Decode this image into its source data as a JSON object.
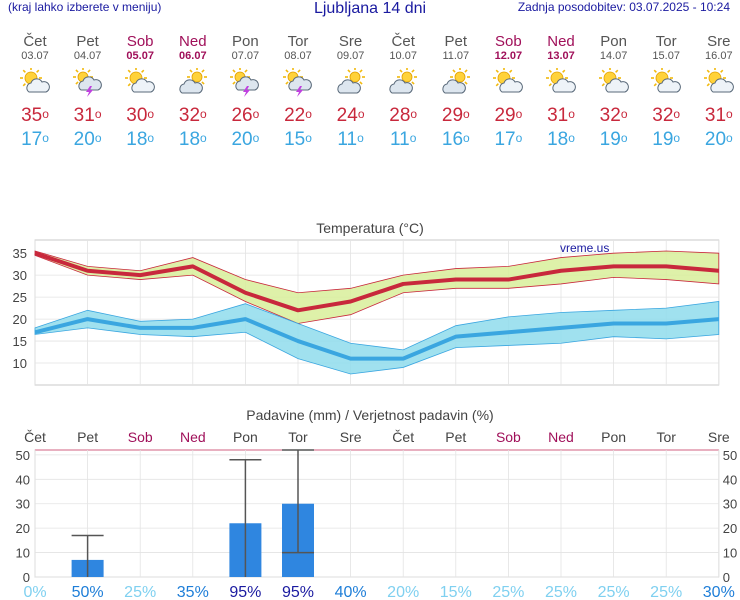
{
  "header": {
    "left_note": "(kraj lahko izberete v meniju)",
    "title": "Ljubljana 14 dni",
    "updated": "Zadnja posodobitev: 03.07.2025 - 10:24"
  },
  "forecast": [
    {
      "day": "Čet",
      "date": "03.07",
      "weekend": false,
      "icon": "sun-cloud-icon",
      "tmax": "35",
      "tmin": "17"
    },
    {
      "day": "Pet",
      "date": "04.07",
      "weekend": false,
      "icon": "thunderstorm-icon",
      "tmax": "31",
      "tmin": "20"
    },
    {
      "day": "Sob",
      "date": "05.07",
      "weekend": true,
      "icon": "sun-cloud-icon",
      "tmax": "30",
      "tmin": "18"
    },
    {
      "day": "Ned",
      "date": "06.07",
      "weekend": true,
      "icon": "cloud-sun-icon",
      "tmax": "32",
      "tmin": "18"
    },
    {
      "day": "Pon",
      "date": "07.07",
      "weekend": false,
      "icon": "thunderstorm-icon",
      "tmax": "26",
      "tmin": "20"
    },
    {
      "day": "Tor",
      "date": "08.07",
      "weekend": false,
      "icon": "thunderstorm-icon",
      "tmax": "22",
      "tmin": "15"
    },
    {
      "day": "Sre",
      "date": "09.07",
      "weekend": false,
      "icon": "cloud-sun-icon",
      "tmax": "24",
      "tmin": "11"
    },
    {
      "day": "Čet",
      "date": "10.07",
      "weekend": false,
      "icon": "cloud-sun-icon",
      "tmax": "28",
      "tmin": "11"
    },
    {
      "day": "Pet",
      "date": "11.07",
      "weekend": false,
      "icon": "cloud-sun-icon",
      "tmax": "29",
      "tmin": "16"
    },
    {
      "day": "Sob",
      "date": "12.07",
      "weekend": true,
      "icon": "sun-cloud-icon",
      "tmax": "29",
      "tmin": "17"
    },
    {
      "day": "Ned",
      "date": "13.07",
      "weekend": true,
      "icon": "sun-cloud-icon",
      "tmax": "31",
      "tmin": "18"
    },
    {
      "day": "Pon",
      "date": "14.07",
      "weekend": false,
      "icon": "sun-cloud-icon",
      "tmax": "32",
      "tmin": "19"
    },
    {
      "day": "Tor",
      "date": "15.07",
      "weekend": false,
      "icon": "sun-cloud-icon",
      "tmax": "32",
      "tmin": "19"
    },
    {
      "day": "Sre",
      "date": "16.07",
      "weekend": false,
      "icon": "sun-cloud-icon",
      "tmax": "31",
      "tmin": "20"
    }
  ],
  "colors": {
    "max": "#c8283c",
    "min": "#3aa6e0",
    "bar": "#2f86e0",
    "weekend": "#a0105a"
  },
  "chart_data": [
    {
      "type": "line",
      "title": "Temperatura (°C)",
      "watermark": "vreme.us",
      "categories": [
        "03.07",
        "04.07",
        "05.07",
        "06.07",
        "07.07",
        "08.07",
        "09.07",
        "10.07",
        "11.07",
        "12.07",
        "13.07",
        "14.07",
        "15.07",
        "16.07"
      ],
      "series": [
        {
          "values": [
            35,
            31,
            30,
            32,
            26,
            22,
            24,
            28,
            29,
            29,
            31,
            32,
            32,
            31
          ],
          "band_low": [
            34.5,
            30,
            29,
            30,
            24,
            19,
            21,
            26,
            27,
            27,
            28,
            29.5,
            29,
            28
          ],
          "band_high": [
            35.5,
            32,
            31,
            34,
            29,
            26,
            27,
            30,
            31.5,
            32,
            34,
            35,
            35.5,
            35
          ]
        },
        {
          "values": [
            17,
            20,
            18,
            18,
            20,
            15,
            11,
            11,
            16,
            17,
            18,
            19,
            19,
            20
          ],
          "band_low": [
            16.5,
            18,
            16.5,
            16,
            17,
            11,
            7.5,
            9,
            13.5,
            14,
            14.5,
            16,
            15.5,
            16.5
          ],
          "band_high": [
            18,
            22,
            19.5,
            20,
            23.5,
            19,
            14.5,
            13,
            18.5,
            20.5,
            21.5,
            22,
            22.5,
            24
          ]
        }
      ],
      "ylim": [
        5,
        38
      ],
      "yticks": [
        10,
        15,
        20,
        25,
        30,
        35
      ]
    },
    {
      "type": "bar",
      "title": "Padavine (mm) / Verjetnost padavin (%)",
      "categories": [
        "Čet",
        "Pet",
        "Sob",
        "Ned",
        "Pon",
        "Tor",
        "Sre",
        "Čet",
        "Pet",
        "Sob",
        "Ned",
        "Pon",
        "Tor",
        "Sre"
      ],
      "weekend": [
        false,
        false,
        true,
        true,
        false,
        false,
        false,
        false,
        false,
        true,
        true,
        false,
        false,
        false
      ],
      "values": [
        0,
        7,
        0,
        0,
        22,
        30,
        0,
        0,
        0,
        0,
        0,
        0,
        0,
        0
      ],
      "err_low": [
        null,
        0,
        null,
        null,
        0,
        10,
        null,
        null,
        null,
        null,
        null,
        null,
        null,
        null
      ],
      "err_high": [
        null,
        17,
        null,
        null,
        48,
        52,
        null,
        null,
        null,
        null,
        null,
        null,
        null,
        null
      ],
      "probability": [
        "0%",
        "50%",
        "25%",
        "35%",
        "95%",
        "95%",
        "40%",
        "20%",
        "15%",
        "25%",
        "25%",
        "25%",
        "25%",
        "30%"
      ],
      "prob_values": [
        0,
        50,
        25,
        35,
        95,
        95,
        40,
        20,
        15,
        25,
        25,
        25,
        25,
        30
      ],
      "ylim": [
        0,
        52
      ],
      "yticks": [
        0,
        10,
        20,
        30,
        40,
        50
      ]
    }
  ]
}
